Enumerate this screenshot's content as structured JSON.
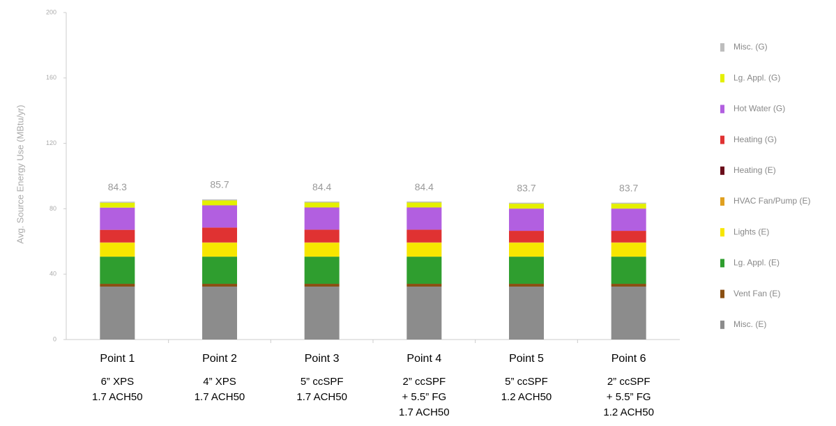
{
  "chart_data": {
    "type": "stacked_bar",
    "y_label": "Avg. Source Energy Use (MBtu/yr)",
    "categories": [
      "Point 1",
      "Point 2",
      "Point 3",
      "Point 4",
      "Point 5",
      "Point 6"
    ],
    "category_details": [
      [
        "6” XPS",
        "1.7 ACH50"
      ],
      [
        "4” XPS",
        "1.7 ACH50"
      ],
      [
        "5” ccSPF",
        "1.7 ACH50"
      ],
      [
        "2” ccSPF",
        "+ 5.5” FG",
        "1.7 ACH50"
      ],
      [
        "5” ccSPF",
        "1.2 ACH50"
      ],
      [
        "2” ccSPF",
        "+ 5.5” FG",
        "1.2 ACH50"
      ]
    ],
    "totals": [
      84.3,
      85.7,
      84.4,
      84.4,
      83.7,
      83.7
    ],
    "series": [
      {
        "name": "Misc. (E)",
        "color": "#8c8c8c",
        "values": [
          32.4,
          32.4,
          32.4,
          32.4,
          32.4,
          32.4
        ]
      },
      {
        "name": "Vent Fan (E)",
        "color": "#8a4f12",
        "values": [
          1.7,
          1.7,
          1.7,
          1.7,
          1.7,
          1.7
        ]
      },
      {
        "name": "Lg. Appl. (E)",
        "color": "#2f9e2f",
        "values": [
          16.6,
          16.6,
          16.6,
          16.6,
          16.6,
          16.6
        ]
      },
      {
        "name": "Lights (E)",
        "color": "#f7e600",
        "values": [
          8.5,
          8.5,
          8.5,
          8.5,
          8.5,
          8.5
        ]
      },
      {
        "name": "HVAC Fan/Pump (E)",
        "color": "#e0a020",
        "values": [
          0.2,
          0.2,
          0.2,
          0.2,
          0.2,
          0.2
        ]
      },
      {
        "name": "Heating (E)",
        "color": "#6a0d1a",
        "values": [
          0,
          0,
          0,
          0,
          0,
          0
        ]
      },
      {
        "name": "Heating (G)",
        "color": "#e03232",
        "values": [
          7.7,
          9.1,
          7.8,
          7.8,
          7.1,
          7.1
        ]
      },
      {
        "name": "Hot Water (G)",
        "color": "#b25fe0",
        "values": [
          13.6,
          13.6,
          13.6,
          13.6,
          13.6,
          13.6
        ]
      },
      {
        "name": "Lg. Appl. (G)",
        "color": "#e4f000",
        "values": [
          3.0,
          3.0,
          3.0,
          3.0,
          3.0,
          3.0
        ]
      },
      {
        "name": "Misc. (G)",
        "color": "#bdbdbd",
        "values": [
          0.6,
          0.6,
          0.6,
          0.6,
          0.6,
          0.6
        ]
      }
    ],
    "ylim": [
      0,
      200
    ],
    "yticks": [
      0,
      40,
      80,
      120,
      160,
      200
    ]
  }
}
